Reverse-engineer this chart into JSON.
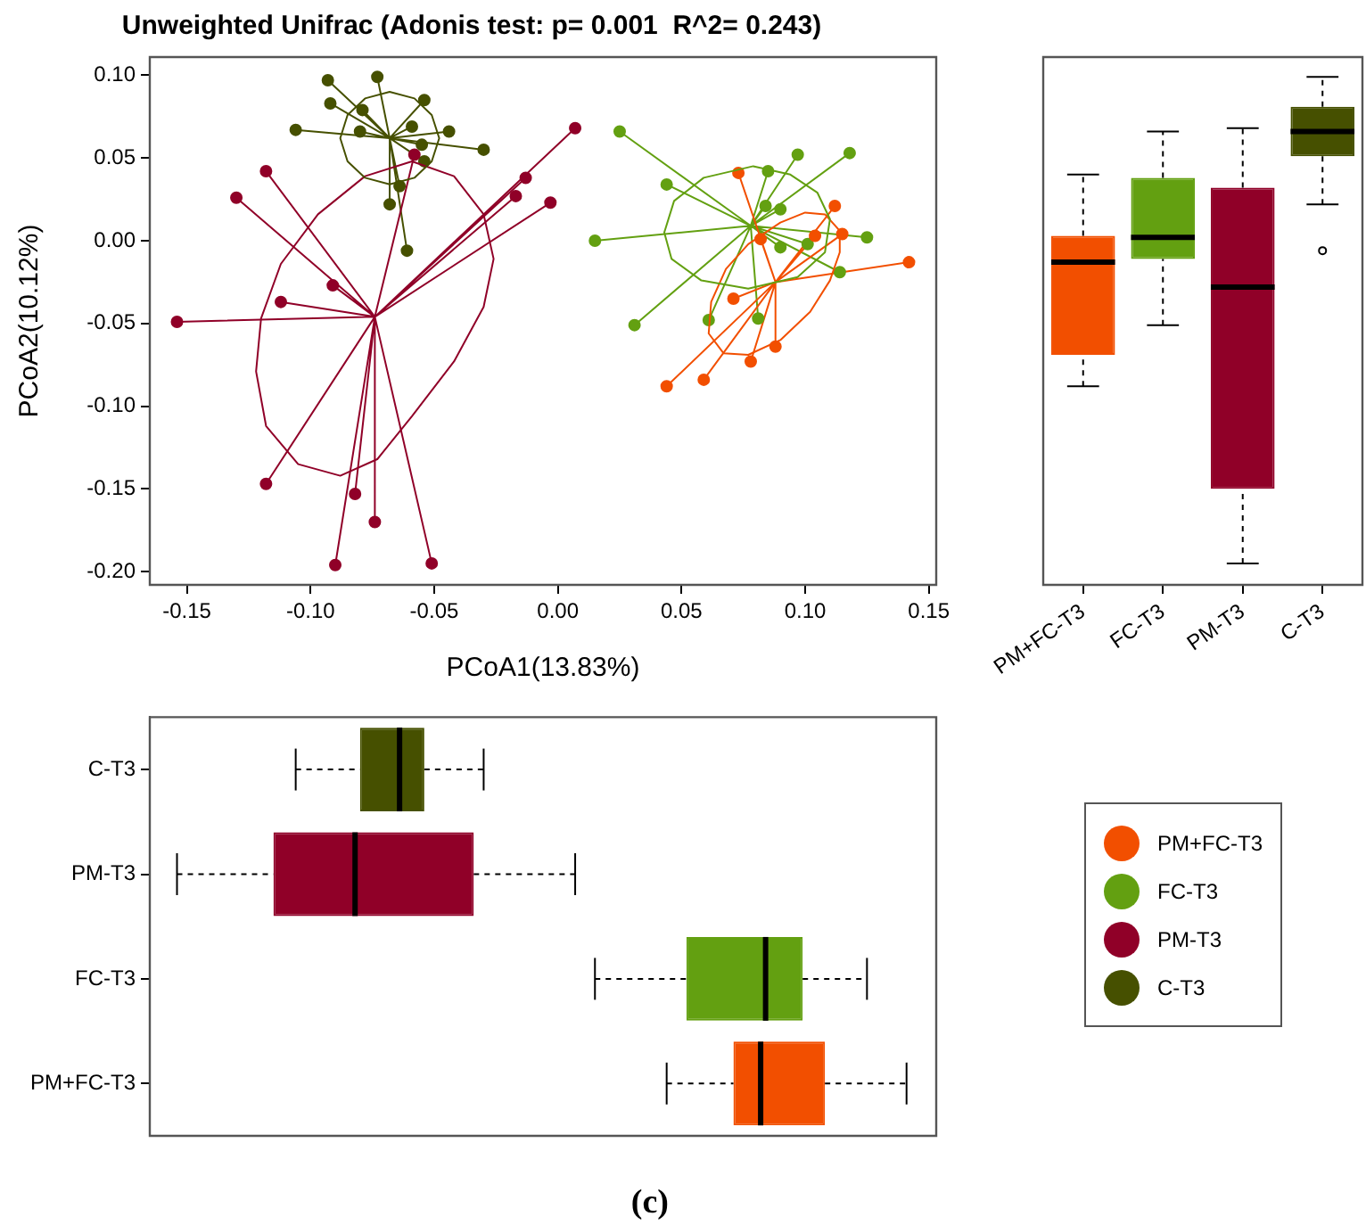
{
  "chart_data": [
    {
      "type": "scatter",
      "title": "Unweighted Unifrac (Adonis test: p= 0.001  R^2= 0.243)",
      "xlabel": "PCoA1(13.83%)",
      "ylabel": "PCoA2(10.12%)",
      "xlim": [
        -0.165,
        0.153
      ],
      "ylim": [
        -0.208,
        0.111
      ],
      "xticks": [
        -0.15,
        {
          "value": -0.1,
          "label": "-0.10"
        },
        -0.05,
        {
          "value": 0,
          "label": "0.00"
        },
        0.05,
        {
          "value": 0.1,
          "label": "0.10"
        },
        0.15
      ],
      "yticks": [
        {
          "value": -0.2,
          "label": "-0.20"
        },
        -0.15,
        {
          "value": -0.1,
          "label": "-0.10"
        },
        -0.05,
        {
          "value": 0,
          "label": "0.00"
        },
        0.05,
        {
          "value": 0.1,
          "label": "0.10"
        }
      ],
      "grid": false,
      "legend": "bottom right",
      "marker": "circle",
      "line_style": "solid",
      "series": [
        {
          "type": "line",
          "marker": "none",
          "color": "#f24f00",
          "x": [
            0.088,
            0.073,
            0.088,
            0.112,
            0.088,
            0.115,
            0.088,
            0.104,
            0.088,
            0.082,
            0.088,
            0.071,
            0.088,
            0.088,
            0.088,
            0.078,
            0.088,
            0.059,
            0.088,
            0.044,
            0.088,
            0.142
          ],
          "values": [
            -0.025,
            0.041,
            -0.025,
            0.021,
            -0.025,
            0.004,
            -0.025,
            0.003,
            -0.025,
            0.001,
            -0.025,
            -0.035,
            -0.025,
            -0.064,
            -0.025,
            -0.073,
            -0.025,
            -0.084,
            -0.025,
            -0.088,
            -0.025,
            -0.013
          ]
        },
        {
          "type": "line",
          "marker": "none",
          "color": "#63a011",
          "x": [
            0.078,
            0.025,
            0.078,
            0.044,
            0.078,
            0.015,
            0.078,
            0.031,
            0.078,
            0.085,
            0.078,
            0.097,
            0.078,
            0.118,
            0.078,
            0.084,
            0.078,
            0.09,
            0.078,
            0.09,
            0.078,
            0.101,
            0.078,
            0.125,
            0.078,
            0.114,
            0.078,
            0.061,
            0.078,
            0.081
          ],
          "values": [
            0.009,
            0.066,
            0.009,
            0.034,
            0.009,
            0.0,
            0.009,
            -0.051,
            0.009,
            0.042,
            0.009,
            0.052,
            0.009,
            0.053,
            0.009,
            0.021,
            0.009,
            0.019,
            0.009,
            -0.004,
            0.009,
            -0.002,
            0.009,
            0.002,
            0.009,
            -0.019,
            0.009,
            -0.048,
            0.009,
            -0.047
          ]
        },
        {
          "type": "line",
          "marker": "none",
          "color": "#900028",
          "x": [
            -0.074,
            -0.058,
            -0.074,
            -0.118,
            -0.074,
            -0.13,
            -0.074,
            -0.091,
            -0.074,
            -0.112,
            -0.074,
            -0.154,
            -0.074,
            -0.118,
            -0.074,
            -0.082,
            -0.074,
            -0.074,
            -0.074,
            -0.09,
            -0.074,
            -0.051,
            -0.074,
            -0.017,
            -0.074,
            -0.013,
            -0.074,
            0.007,
            -0.074,
            -0.003
          ],
          "values": [
            -0.046,
            0.052,
            -0.046,
            0.042,
            -0.046,
            0.026,
            -0.046,
            -0.027,
            -0.046,
            -0.037,
            -0.046,
            -0.049,
            -0.046,
            -0.147,
            -0.046,
            -0.153,
            -0.046,
            -0.17,
            -0.046,
            -0.196,
            -0.046,
            -0.195,
            -0.046,
            0.027,
            -0.046,
            0.038,
            -0.046,
            0.068,
            -0.046,
            0.023
          ]
        },
        {
          "type": "line",
          "marker": "none",
          "color": "#465000",
          "x": [
            -0.068,
            -0.093,
            -0.068,
            -0.073,
            -0.068,
            -0.092,
            -0.068,
            -0.079,
            -0.068,
            -0.054,
            -0.068,
            -0.106,
            -0.068,
            -0.08,
            -0.068,
            -0.059,
            -0.068,
            -0.044,
            -0.068,
            -0.055,
            -0.068,
            -0.03,
            -0.068,
            -0.054,
            -0.068,
            -0.064,
            -0.068,
            -0.068,
            -0.068,
            -0.061
          ],
          "values": [
            0.062,
            0.097,
            0.062,
            0.099,
            0.062,
            0.083,
            0.062,
            0.079,
            0.062,
            0.085,
            0.062,
            0.067,
            0.062,
            0.066,
            0.062,
            0.069,
            0.062,
            0.066,
            0.062,
            0.058,
            0.062,
            0.055,
            0.062,
            0.048,
            0.062,
            0.033,
            0.062,
            0.022,
            0.062,
            -0.006
          ]
        },
        {
          "type": "scatter",
          "name": "PM+FC-T3",
          "color": "#f24f00",
          "x": [
            0.073,
            0.112,
            0.115,
            0.104,
            0.082,
            0.071,
            0.088,
            0.078,
            0.059,
            0.044,
            0.142
          ],
          "values": [
            0.041,
            0.021,
            0.004,
            0.003,
            0.001,
            -0.035,
            -0.064,
            -0.073,
            -0.084,
            -0.088,
            -0.013
          ]
        },
        {
          "type": "scatter",
          "name": "FC-T3",
          "color": "#63a011",
          "x": [
            0.025,
            0.044,
            0.015,
            0.031,
            0.085,
            0.097,
            0.118,
            0.084,
            0.09,
            0.09,
            0.101,
            0.125,
            0.114,
            0.061,
            0.081
          ],
          "values": [
            0.066,
            0.034,
            0.0,
            -0.051,
            0.042,
            0.052,
            0.053,
            0.021,
            0.019,
            -0.004,
            -0.002,
            0.002,
            -0.019,
            -0.048,
            -0.047
          ]
        },
        {
          "type": "scatter",
          "name": "PM-T3",
          "color": "#900028",
          "x": [
            -0.058,
            -0.118,
            -0.13,
            -0.091,
            -0.112,
            -0.154,
            -0.118,
            -0.082,
            -0.074,
            -0.09,
            -0.051,
            -0.017,
            -0.013,
            0.007,
            -0.003
          ],
          "values": [
            0.052,
            0.042,
            0.026,
            -0.027,
            -0.037,
            -0.049,
            -0.147,
            -0.153,
            -0.17,
            -0.196,
            -0.195,
            0.027,
            0.038,
            0.068,
            0.023
          ]
        },
        {
          "type": "scatter",
          "name": "C-T3",
          "color": "#465000",
          "x": [
            -0.093,
            -0.073,
            -0.092,
            -0.079,
            -0.054,
            -0.106,
            -0.08,
            -0.059,
            -0.044,
            -0.055,
            -0.03,
            -0.054,
            -0.064,
            -0.068,
            -0.061
          ],
          "values": [
            0.097,
            0.099,
            0.083,
            0.079,
            0.085,
            0.067,
            0.066,
            0.069,
            0.066,
            0.058,
            0.055,
            0.048,
            0.033,
            0.022,
            -0.006
          ]
        }
      ]
    },
    {
      "type": "box",
      "categories": [
        "PM+FC-T3",
        "FC-T3",
        "PM-T3",
        "C-T3"
      ],
      "colors": [
        "#f24f00",
        "#63a011",
        "#900028",
        "#465000"
      ],
      "ylim": [
        -0.208,
        0.111
      ],
      "tick_labels": "x",
      "boxes": [
        {
          "low": -0.088,
          "q1": -0.069,
          "median": -0.013,
          "q3": 0.003,
          "high": 0.04
        },
        {
          "low": -0.051,
          "q1": -0.011,
          "median": 0.002,
          "q3": 0.038,
          "high": 0.066
        },
        {
          "low": -0.195,
          "q1": -0.15,
          "median": -0.028,
          "q3": 0.032,
          "high": 0.068
        },
        {
          "low": 0.022,
          "q1": 0.051,
          "median": 0.066,
          "q3": 0.081,
          "high": 0.099,
          "outliers": [
            -0.006
          ]
        }
      ]
    },
    {
      "type": "box",
      "orientation": "horizontal",
      "categories": [
        "C-T3",
        "PM-T3",
        "FC-T3",
        "PM+FC-T3"
      ],
      "colors": [
        "#465000",
        "#900028",
        "#63a011",
        "#f24f00"
      ],
      "xlim": [
        -0.165,
        0.153
      ],
      "tick_labels": "y",
      "annotations": [
        "(c)"
      ],
      "boxes": [
        {
          "low": -0.106,
          "q1": -0.08,
          "median": -0.064,
          "q3": -0.054,
          "high": -0.03
        },
        {
          "low": -0.154,
          "q1": -0.115,
          "median": -0.082,
          "q3": -0.034,
          "high": 0.007
        },
        {
          "low": 0.015,
          "q1": 0.052,
          "median": 0.084,
          "q3": 0.099,
          "high": 0.125
        },
        {
          "low": 0.044,
          "q1": 0.071,
          "median": 0.082,
          "q3": 0.108,
          "high": 0.141
        }
      ]
    }
  ]
}
